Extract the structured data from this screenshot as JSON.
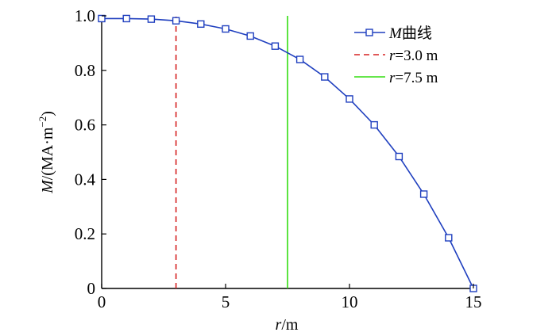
{
  "chart_data": {
    "type": "line",
    "xlabel": {
      "var": "r",
      "unit": "/m"
    },
    "ylabel": {
      "var": "M",
      "unit": "/(MA·m",
      "exp": "−2",
      "close": ")"
    },
    "xlim": [
      0,
      15
    ],
    "ylim": [
      0,
      1.0
    ],
    "xticks": [
      0,
      5,
      10,
      15
    ],
    "xtick_labels": [
      "0",
      "5",
      "10",
      "15"
    ],
    "yticks": [
      0,
      0.2,
      0.4,
      0.6,
      0.8,
      1.0
    ],
    "ytick_labels": [
      "0",
      "0.2",
      "0.4",
      "0.6",
      "0.8",
      "1.0"
    ],
    "grid": false,
    "legend_position": "top-right",
    "series": [
      {
        "name_var": "M",
        "name_suffix": "曲线",
        "color": "#1f3fbf",
        "marker": "square",
        "x": [
          0,
          1,
          2,
          3,
          4,
          5,
          6,
          7,
          8,
          9,
          10,
          11,
          12,
          13,
          14,
          15
        ],
        "y": [
          0.99,
          0.99,
          0.988,
          0.982,
          0.97,
          0.952,
          0.926,
          0.889,
          0.84,
          0.776,
          0.695,
          0.6,
          0.484,
          0.346,
          0.186,
          0.0
        ]
      }
    ],
    "reference_lines": [
      {
        "name_var": "r",
        "name_suffix": "=3.0 m",
        "x": 3.0,
        "color": "#d62020",
        "style": "dashed"
      },
      {
        "name_var": "r",
        "name_suffix": "=7.5 m",
        "x": 7.5,
        "color": "#33dd11",
        "style": "solid"
      }
    ]
  }
}
